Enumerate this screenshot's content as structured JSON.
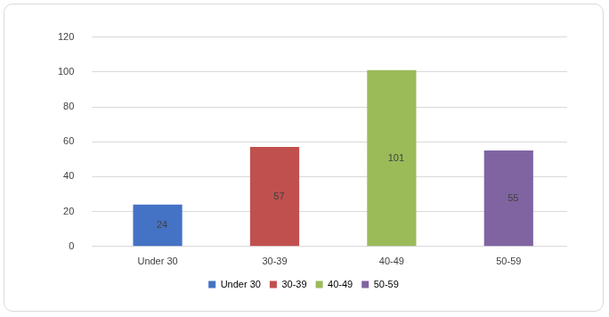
{
  "chart_data": {
    "type": "bar",
    "categories": [
      "Under 30",
      "30-39",
      "40-49",
      "50-59"
    ],
    "values": [
      24,
      57,
      101,
      55
    ],
    "colors": [
      "#4472c4",
      "#c0504d",
      "#9bbb59",
      "#8064a2"
    ],
    "ylim": [
      0,
      120
    ],
    "yticks": [
      0,
      20,
      40,
      60,
      80,
      100,
      120
    ],
    "grid": true,
    "legend": "bottom",
    "data_labels": true
  }
}
